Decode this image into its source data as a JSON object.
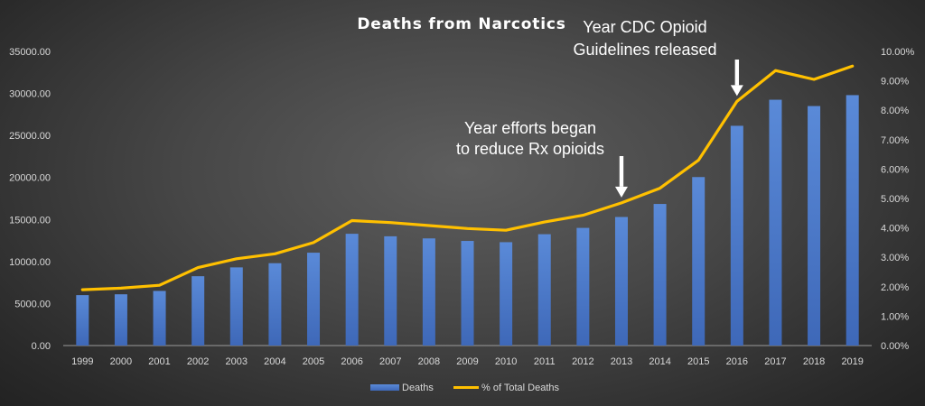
{
  "chart_data": {
    "type": "bar",
    "title": "Deaths from Narcotics",
    "categories": [
      "1999",
      "2000",
      "2001",
      "2002",
      "2003",
      "2004",
      "2005",
      "2006",
      "2007",
      "2008",
      "2009",
      "2010",
      "2011",
      "2012",
      "2013",
      "2014",
      "2015",
      "2016",
      "2017",
      "2018",
      "2019"
    ],
    "series": [
      {
        "name": "Deaths",
        "type": "bar",
        "axis": "left",
        "color": "#4472C4",
        "values": [
          6000,
          6100,
          6500,
          8250,
          9300,
          9800,
          11050,
          13300,
          13000,
          12750,
          12450,
          12300,
          13250,
          14000,
          15300,
          16850,
          20050,
          26150,
          29250,
          28500,
          29800
        ]
      },
      {
        "name": "% of Total Deaths",
        "type": "line",
        "axis": "right",
        "color": "#FFC000",
        "values": [
          0.019,
          0.0195,
          0.0205,
          0.0265,
          0.0295,
          0.0312,
          0.035,
          0.0425,
          0.0418,
          0.0408,
          0.0398,
          0.0392,
          0.042,
          0.0443,
          0.0485,
          0.0535,
          0.063,
          0.083,
          0.0935,
          0.0905,
          0.095
        ]
      }
    ],
    "y_left": {
      "min": 0,
      "max": 35000,
      "ticks": [
        "0.00",
        "5000.00",
        "10000.00",
        "15000.00",
        "20000.00",
        "25000.00",
        "30000.00",
        "35000.00"
      ]
    },
    "y_right": {
      "min": 0,
      "max": 0.1,
      "ticks": [
        "0.00%",
        "1.00%",
        "2.00%",
        "3.00%",
        "4.00%",
        "5.00%",
        "6.00%",
        "7.00%",
        "8.00%",
        "9.00%",
        "10.00%"
      ]
    },
    "grid": false,
    "legend_position": "bottom",
    "annotations": [
      {
        "lines": [
          "Year efforts began",
          "to reduce Rx opioids"
        ],
        "category": "2013"
      },
      {
        "lines": [
          "Year CDC Opioid",
          "Guidelines released"
        ],
        "category": "2016"
      }
    ]
  }
}
